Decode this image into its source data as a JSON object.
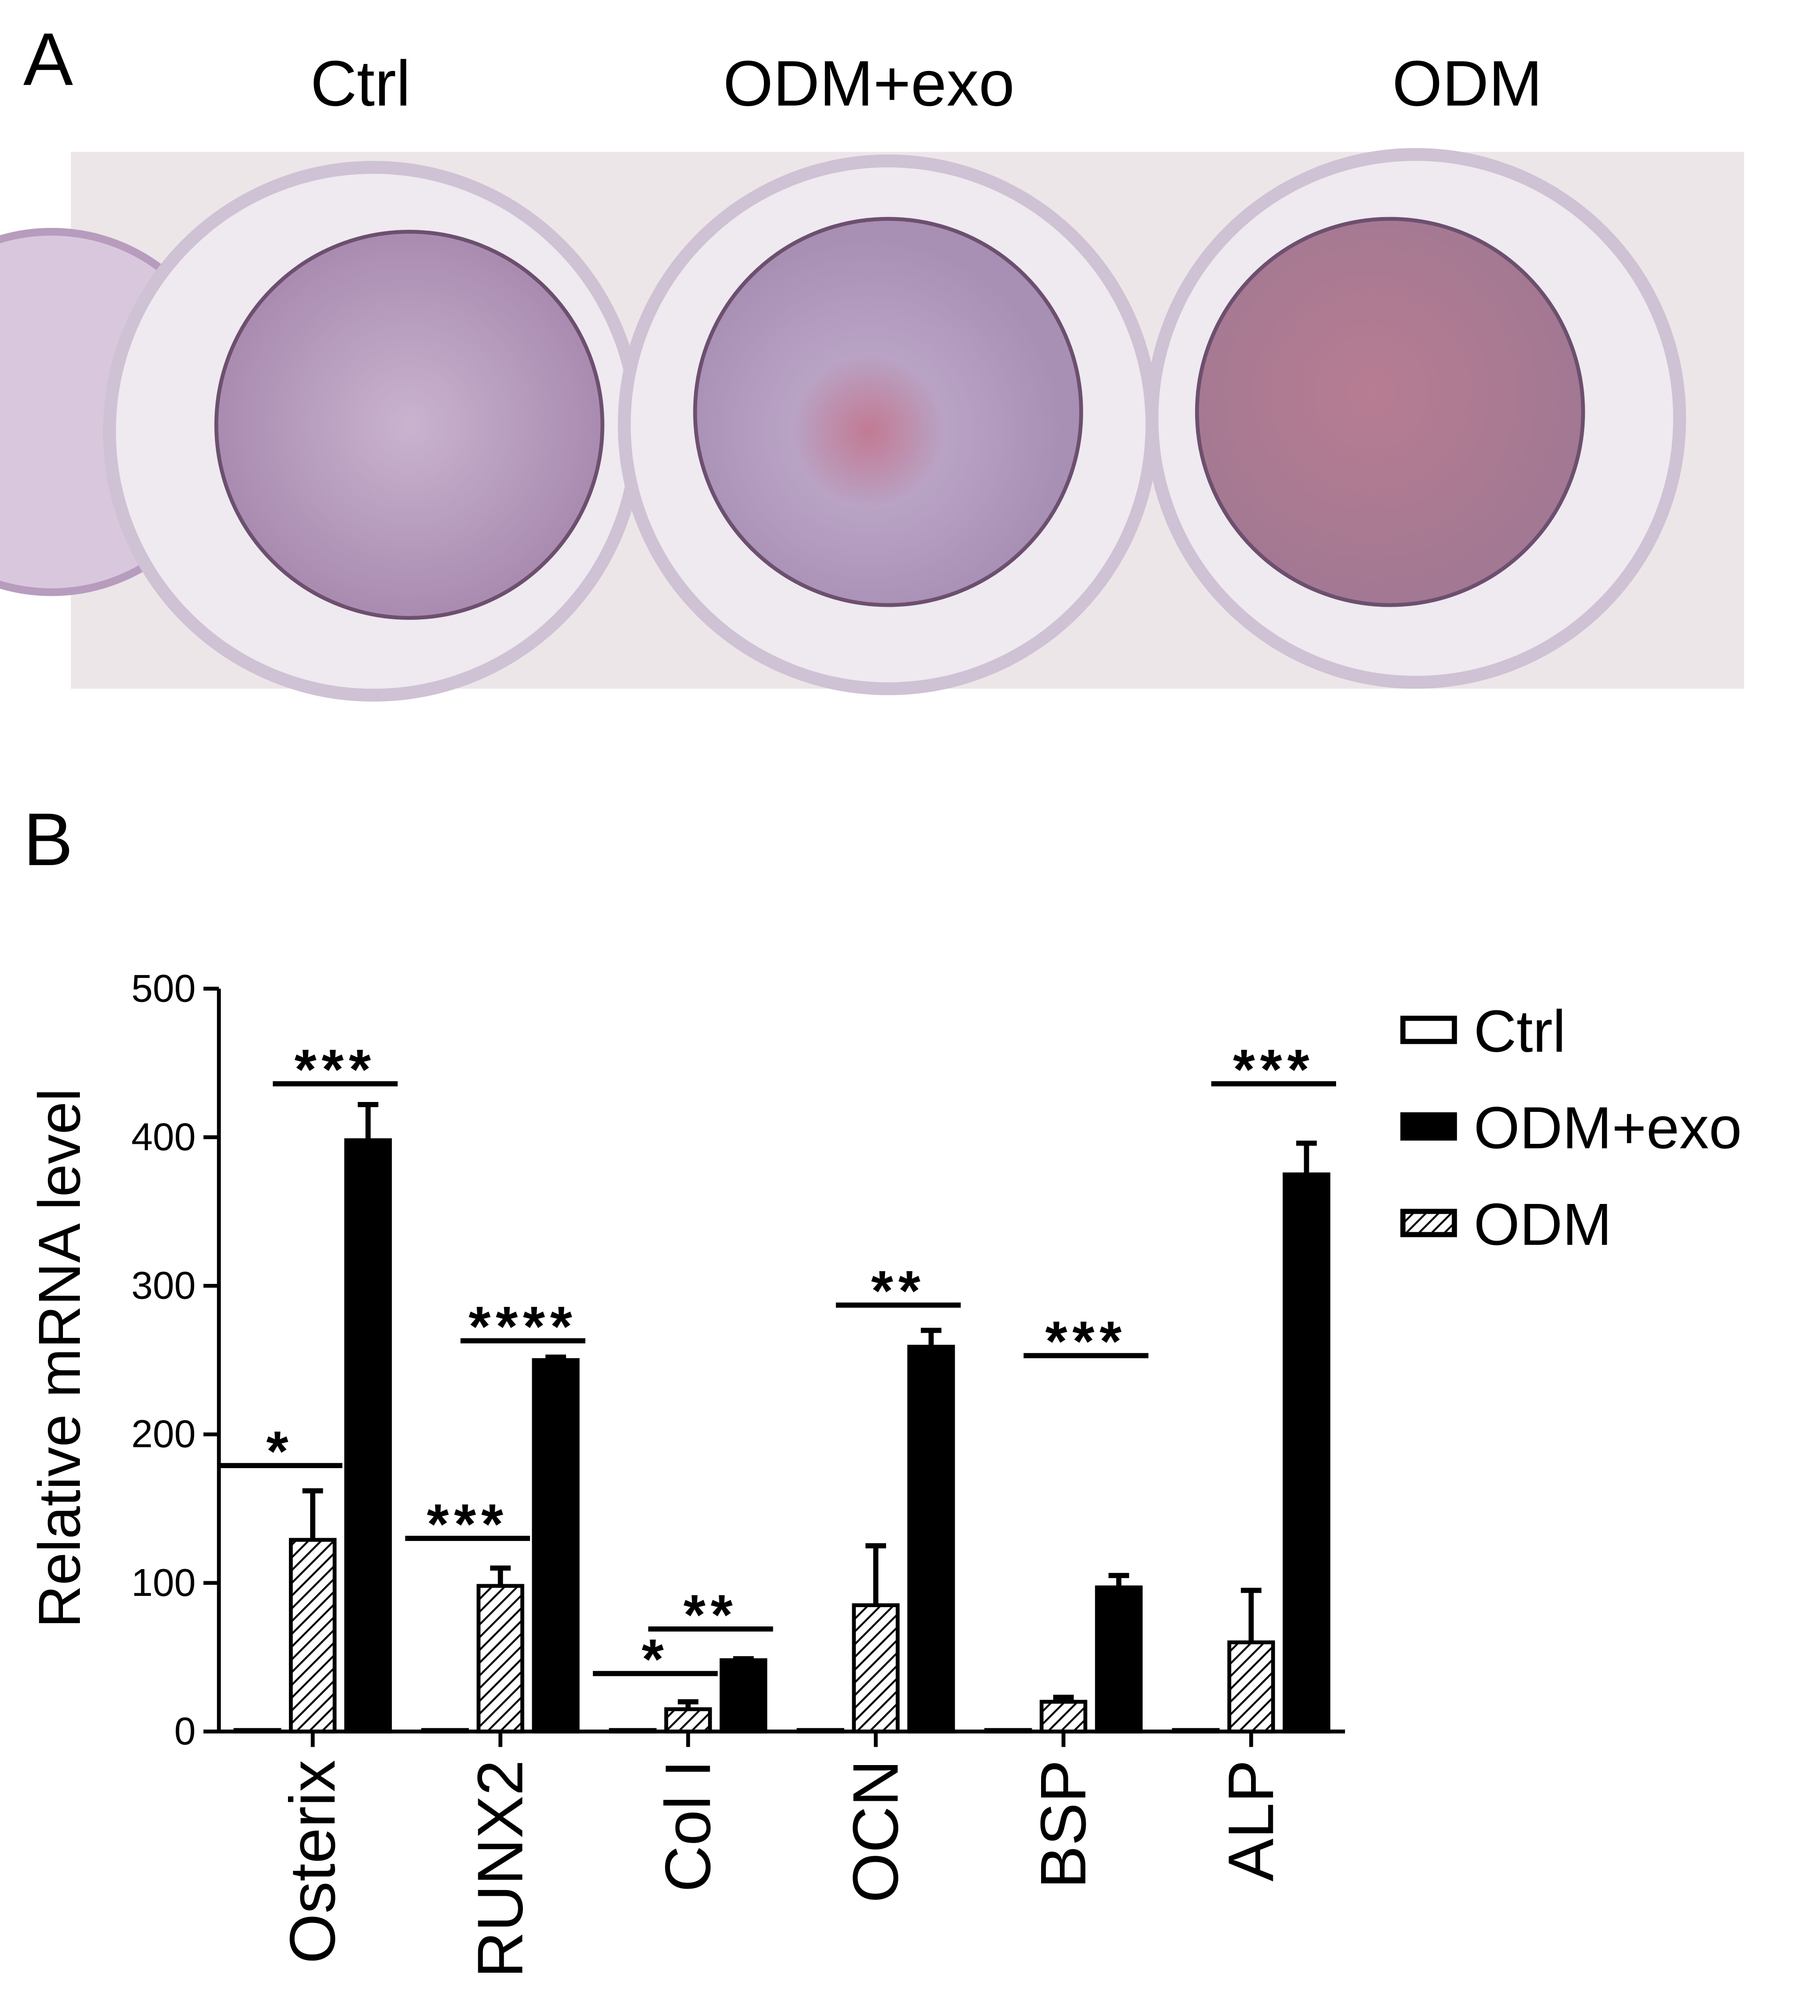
{
  "panel_a": {
    "label": "A",
    "column_labels": [
      "Ctrl",
      "ODM+exo",
      "ODM"
    ]
  },
  "panel_b": {
    "label": "B"
  },
  "chart_data": {
    "type": "bar",
    "y_label": "Relative mRNA level",
    "categories": [
      "Osterix",
      "RUNX2",
      "Col I",
      "OCN",
      "BSP",
      "ALP"
    ],
    "series": [
      {
        "name": "Ctrl",
        "color": "#ffffff",
        "values": [
          1,
          1,
          1,
          1,
          1,
          1
        ]
      },
      {
        "name": "ODM+exo",
        "color": "#000000",
        "values": [
          398,
          250,
          48,
          259,
          97,
          375
        ],
        "errors": [
          24,
          2,
          1,
          11,
          8,
          21
        ]
      },
      {
        "name": "ODM",
        "color": "#ffffff",
        "hatch": true,
        "values": [
          129,
          98,
          15,
          85,
          20,
          60
        ],
        "errors": [
          33,
          12,
          5,
          40,
          3,
          35
        ]
      }
    ],
    "ylim": [
      0,
      500
    ],
    "yticks": [
      0,
      100,
      200,
      300,
      400,
      500
    ],
    "legend": "right",
    "significance": [
      {
        "category": 0,
        "from": 0,
        "to": 2,
        "y": 179,
        "text": "*"
      },
      {
        "category": 0,
        "from": 2,
        "to": 1,
        "y": 436,
        "text": "***"
      },
      {
        "category": 1,
        "from": 0,
        "to": 2,
        "y": 130,
        "text": "***"
      },
      {
        "category": 1,
        "from": 2,
        "to": 1,
        "y": 263,
        "text": "****"
      },
      {
        "category": 2,
        "from": 0,
        "to": 2,
        "y": 39,
        "text": "*"
      },
      {
        "category": 2,
        "from": 2,
        "to": 1,
        "y": 69,
        "text": "**"
      },
      {
        "category": 3,
        "from": 2,
        "to": 1,
        "y": 287,
        "text": "**"
      },
      {
        "category": 4,
        "from": 2,
        "to": 1,
        "y": 253,
        "text": "***"
      },
      {
        "category": 5,
        "from": 2,
        "to": 1,
        "y": 436,
        "text": "***"
      }
    ]
  }
}
